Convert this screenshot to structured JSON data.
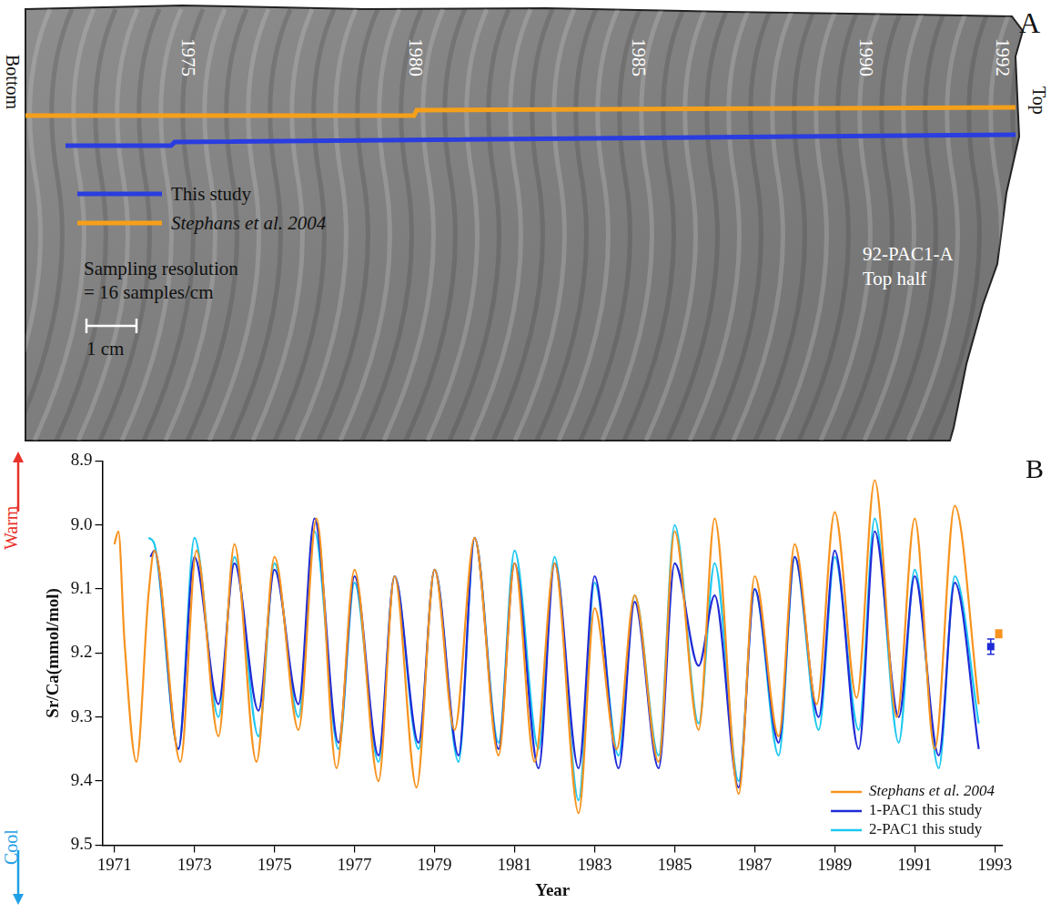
{
  "panel_a": {
    "label": "A",
    "years": [
      "1975",
      "1980",
      "1985",
      "1990",
      "1992"
    ],
    "bottom_label": "Bottom",
    "top_label": "Top",
    "lines": [
      {
        "name": "This study",
        "color": "#2a3de0"
      },
      {
        "name": "Stephans et al. 2004",
        "color": "#f5a01a"
      }
    ],
    "sampling": [
      "Sampling resolution",
      "= 16 samples/cm"
    ],
    "scale_bar": "1 cm",
    "sample": [
      "92-PAC1-A",
      "Top half"
    ]
  },
  "chart_data": {
    "type": "line",
    "panel_label": "B",
    "y_label": "Sr/Ca(mmol/mol)",
    "x_label": "Year",
    "warm_label": "Warm",
    "cool_label": "Cool",
    "xlim": [
      1970.7,
      1993.2
    ],
    "xticks": [
      1971,
      1973,
      1975,
      1977,
      1979,
      1981,
      1983,
      1985,
      1987,
      1989,
      1991,
      1993
    ],
    "ylim": [
      9.5,
      8.9
    ],
    "yticks": [
      8.9,
      {
        "value": 9,
        "label": "9.0"
      },
      9.1,
      9.2,
      9.3,
      9.4,
      9.5
    ],
    "grid": false,
    "legend": "lower right",
    "series": [
      {
        "name": "Stephans et al. 2004",
        "color": "#f7931e",
        "x": [
          1971.0,
          1971.1,
          1971.25,
          1971.55,
          1971.85,
          1972.0,
          1972.65,
          1973.05,
          1973.6,
          1974.0,
          1974.55,
          1975.0,
          1975.6,
          1976.05,
          1976.55,
          1977.0,
          1977.6,
          1978.0,
          1978.55,
          1979.0,
          1979.5,
          1980.0,
          1980.6,
          1981.0,
          1981.5,
          1982.0,
          1982.6,
          1983.0,
          1983.55,
          1984.0,
          1984.6,
          1985.0,
          1985.6,
          1986.0,
          1986.6,
          1987.0,
          1987.6,
          1988.0,
          1988.55,
          1989.0,
          1989.55,
          1990.0,
          1990.55,
          1991.0,
          1991.5,
          1992.0,
          1992.6
        ],
        "values": [
          9.03,
          9.01,
          9.18,
          9.37,
          9.11,
          9.04,
          9.37,
          9.04,
          9.33,
          9.03,
          9.37,
          9.05,
          9.32,
          8.99,
          9.38,
          9.07,
          9.4,
          9.08,
          9.41,
          9.07,
          9.32,
          9.02,
          9.36,
          9.06,
          9.37,
          9.06,
          9.45,
          9.13,
          9.35,
          9.11,
          9.37,
          9.01,
          9.32,
          8.99,
          9.42,
          9.08,
          9.33,
          9.03,
          9.28,
          8.98,
          9.27,
          8.93,
          9.3,
          8.99,
          9.35,
          8.97,
          9.28
        ]
      },
      {
        "name": "1-PAC1 this study",
        "color": "#1f2bd6",
        "x": [
          1971.9,
          1972.0,
          1972.6,
          1973.0,
          1973.6,
          1974.0,
          1974.6,
          1975.0,
          1975.6,
          1976.0,
          1976.6,
          1977.0,
          1977.6,
          1978.0,
          1978.6,
          1979.0,
          1979.6,
          1980.0,
          1980.6,
          1981.0,
          1981.6,
          1982.0,
          1982.6,
          1983.0,
          1983.6,
          1984.0,
          1984.6,
          1985.0,
          1985.6,
          1986.0,
          1986.6,
          1987.0,
          1987.6,
          1988.0,
          1988.6,
          1989.0,
          1989.6,
          1990.0,
          1990.6,
          1991.0,
          1991.6,
          1992.0,
          1992.6
        ],
        "values": [
          9.05,
          9.04,
          9.35,
          9.05,
          9.28,
          9.06,
          9.29,
          9.07,
          9.28,
          8.99,
          9.34,
          9.08,
          9.36,
          9.08,
          9.34,
          9.07,
          9.36,
          9.02,
          9.35,
          9.06,
          9.38,
          9.06,
          9.38,
          9.08,
          9.38,
          9.12,
          9.38,
          9.06,
          9.22,
          9.11,
          9.41,
          9.1,
          9.34,
          9.05,
          9.3,
          9.04,
          9.35,
          9.01,
          9.3,
          9.08,
          9.36,
          9.09,
          9.35
        ]
      },
      {
        "name": "2-PAC1 this study",
        "color": "#1ec8f0",
        "x": [
          1971.85,
          1972.0,
          1972.6,
          1973.0,
          1973.6,
          1974.0,
          1974.6,
          1975.0,
          1975.6,
          1976.0,
          1976.6,
          1977.0,
          1977.6,
          1978.0,
          1978.6,
          1979.0,
          1979.6,
          1980.0,
          1980.6,
          1981.0,
          1981.6,
          1982.0,
          1982.6,
          1983.0,
          1983.6,
          1984.0,
          1984.6,
          1985.0,
          1985.6,
          1986.0,
          1986.6,
          1987.0,
          1987.6,
          1988.0,
          1988.6,
          1989.0,
          1989.6,
          1990.0,
          1990.6,
          1991.0,
          1991.6,
          1992.0,
          1992.6
        ],
        "values": [
          9.02,
          9.03,
          9.35,
          9.02,
          9.3,
          9.05,
          9.33,
          9.06,
          9.3,
          9.01,
          9.35,
          9.09,
          9.37,
          9.08,
          9.35,
          9.07,
          9.37,
          9.02,
          9.34,
          9.04,
          9.35,
          9.05,
          9.43,
          9.09,
          9.36,
          9.11,
          9.36,
          9.0,
          9.31,
          9.06,
          9.4,
          9.1,
          9.36,
          9.05,
          9.32,
          9.05,
          9.32,
          8.99,
          9.34,
          9.07,
          9.38,
          9.08,
          9.31
        ]
      }
    ],
    "error_bars": [
      {
        "x": 1992.9,
        "y": 9.19,
        "error": 0.012,
        "color": "#1f2bd6",
        "marker": "square"
      },
      {
        "x": 1993.1,
        "y": 9.17,
        "error": 0.006,
        "color": "#f7931e",
        "marker": "square"
      }
    ]
  }
}
